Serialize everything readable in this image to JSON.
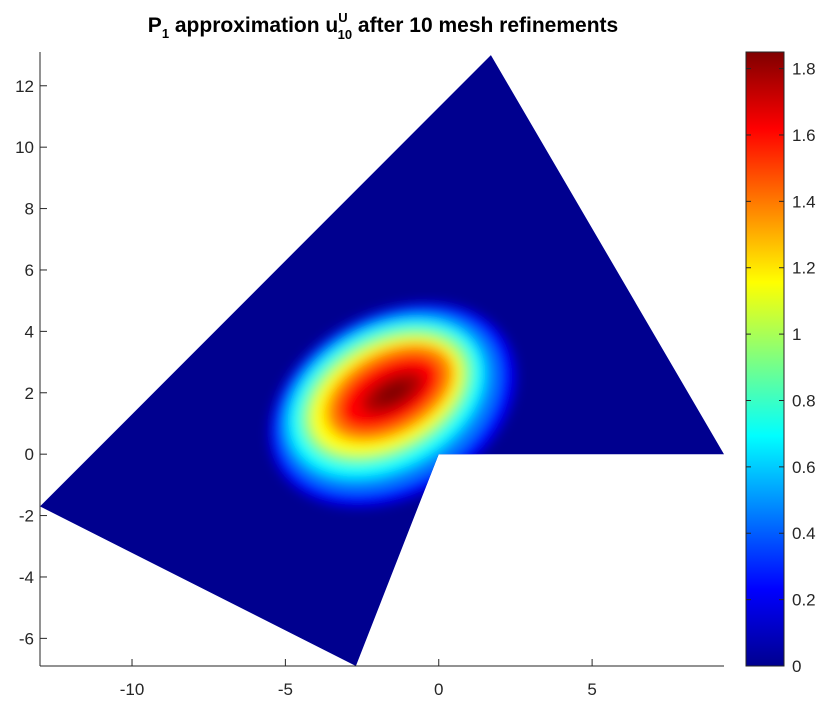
{
  "chart_data": {
    "type": "heatmap",
    "title": {
      "prefix": "P",
      "prefix_sub": "1",
      "middle": " approximation u",
      "u_sup": "U",
      "u_sub": "10",
      "suffix": " after 10 mesh refinements"
    },
    "xlabel": "",
    "ylabel": "",
    "xlim": [
      -13,
      9.3
    ],
    "ylim": [
      -6.9,
      13.1
    ],
    "xticks": [
      -10,
      -5,
      0,
      5
    ],
    "yticks": [
      -6,
      -4,
      -2,
      0,
      2,
      4,
      6,
      8,
      10,
      12
    ],
    "xtick_labels": [
      "-10",
      "-5",
      "0",
      "5"
    ],
    "ytick_labels": [
      "-6",
      "-4",
      "-2",
      "0",
      "2",
      "4",
      "6",
      "8",
      "10",
      "12"
    ],
    "colormap": "jet",
    "colorbar": {
      "min": 0,
      "max": 1.85,
      "ticks": [
        0,
        0.2,
        0.4,
        0.6,
        0.8,
        1,
        1.2,
        1.4,
        1.6,
        1.8
      ],
      "tick_labels": [
        "0",
        "0.2",
        "0.4",
        "0.6",
        "0.8",
        "1",
        "1.2",
        "1.4",
        "1.6",
        "1.8"
      ]
    },
    "domain_polygon": [
      [
        -13,
        -1.7
      ],
      [
        1.7,
        13
      ],
      [
        9.3,
        0
      ],
      [
        0,
        0
      ],
      [
        -2.7,
        -6.9
      ]
    ],
    "peak": {
      "x": -1.5,
      "y": 2.0,
      "value": 1.84
    }
  },
  "colors": {
    "background": "#ffffff",
    "axis": "#262626",
    "domain_fill": "#00008f",
    "jet_stops": [
      "#00008f",
      "#0000ff",
      "#00ffff",
      "#ffff00",
      "#ff0000",
      "#800000"
    ]
  }
}
